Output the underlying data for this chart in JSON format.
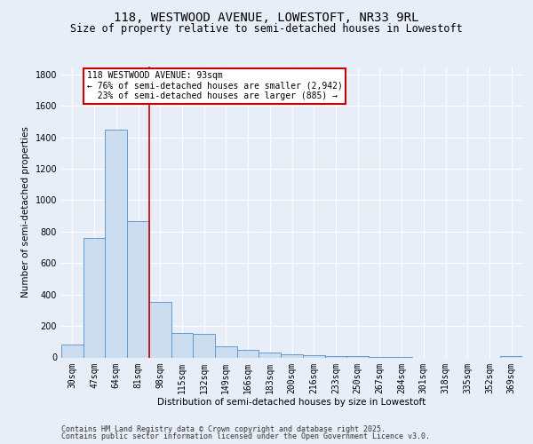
{
  "title_line1": "118, WESTWOOD AVENUE, LOWESTOFT, NR33 9RL",
  "title_line2": "Size of property relative to semi-detached houses in Lowestoft",
  "xlabel": "Distribution of semi-detached houses by size in Lowestoft",
  "ylabel": "Number of semi-detached properties",
  "categories": [
    "30sqm",
    "47sqm",
    "64sqm",
    "81sqm",
    "98sqm",
    "115sqm",
    "132sqm",
    "149sqm",
    "166sqm",
    "183sqm",
    "200sqm",
    "216sqm",
    "233sqm",
    "250sqm",
    "267sqm",
    "284sqm",
    "301sqm",
    "318sqm",
    "335sqm",
    "352sqm",
    "369sqm"
  ],
  "values": [
    80,
    760,
    1450,
    865,
    355,
    155,
    150,
    70,
    50,
    30,
    20,
    15,
    10,
    10,
    5,
    5,
    0,
    0,
    0,
    0,
    10
  ],
  "bar_color": "#ccddf0",
  "bar_edge_color": "#6699cc",
  "vline_x": 3.5,
  "vertical_line_color": "#cc0000",
  "annotation_line1": "118 WESTWOOD AVENUE: 93sqm",
  "annotation_line2": "← 76% of semi-detached houses are smaller (2,942)",
  "annotation_line3": "  23% of semi-detached houses are larger (885) →",
  "annotation_box_color": "#cc0000",
  "ylim": [
    0,
    1850
  ],
  "yticks": [
    0,
    200,
    400,
    600,
    800,
    1000,
    1200,
    1400,
    1600,
    1800
  ],
  "bg_color": "#e8eef8",
  "grid_color": "#ffffff",
  "footer_line1": "Contains HM Land Registry data © Crown copyright and database right 2025.",
  "footer_line2": "Contains public sector information licensed under the Open Government Licence v3.0.",
  "title_fontsize": 10,
  "subtitle_fontsize": 8.5,
  "axis_label_fontsize": 7.5,
  "tick_fontsize": 7,
  "annotation_fontsize": 7,
  "footer_fontsize": 6
}
